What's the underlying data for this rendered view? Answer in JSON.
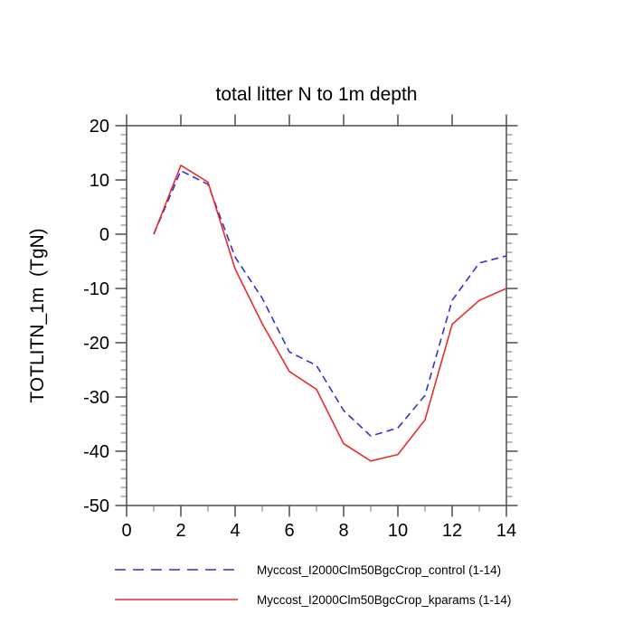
{
  "chart_data": {
    "type": "line",
    "title": "total litter N to 1m depth",
    "xlabel": "",
    "ylabel": "TOTLITN_1m  (TgN)",
    "xlim": [
      0,
      14
    ],
    "ylim": [
      -50,
      20
    ],
    "grid": false,
    "legend_position": "below",
    "x": [
      1,
      2,
      3,
      4,
      5,
      6,
      7,
      8,
      9,
      10,
      11,
      12,
      13,
      14
    ],
    "x_major_ticks": [
      0,
      2,
      4,
      6,
      8,
      10,
      12,
      14
    ],
    "x_minor_ticks": [
      1,
      3,
      5,
      7,
      9,
      11,
      13
    ],
    "y_major_ticks": [
      20,
      10,
      0,
      -10,
      -20,
      -30,
      -40,
      -50
    ],
    "y_minor_step": 1.6667,
    "series": [
      {
        "name": "Myccost_I2000Clm50BgcCrop_control (1-14)",
        "color": "#3232cd",
        "style": "dashed",
        "values": [
          0.0,
          11.7,
          9.2,
          -4.2,
          -11.8,
          -21.7,
          -24.2,
          -32.5,
          -37.2,
          -35.7,
          -29.7,
          -12.2,
          -5.3,
          -4.0
        ]
      },
      {
        "name": "Myccost_I2000Clm50BgcCrop_kparams (1-14)",
        "color": "#e82c2c",
        "style": "solid",
        "values": [
          0.0,
          12.7,
          9.6,
          -6.4,
          -16.5,
          -25.3,
          -28.6,
          -38.6,
          -41.8,
          -40.6,
          -34.2,
          -16.6,
          -12.2,
          -10.0
        ]
      }
    ],
    "axis_color": "#4d4d4d",
    "minor_tick_color": "#8c8c8c"
  }
}
